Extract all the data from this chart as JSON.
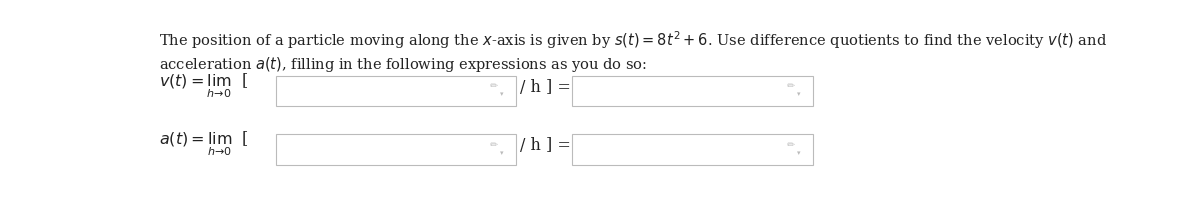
{
  "line1": "The position of a particle moving along the $x$-axis is given by $s(t) = 8t^2 + 6$. Use difference quotients to find the velocity $v(t)$ and",
  "line2": "acceleration $a(t)$, filling in the following expressions as you do so:",
  "row1_label": "$v(t) = \\lim_{h\\to 0}$  [",
  "row2_label": "$a(t) = \\lim_{h\\to 0}$  [",
  "separator": "/ h ] =",
  "box_fill": "#ffffff",
  "box_edge": "#bbbbbb",
  "text_color": "#222222",
  "bg_color": "#ffffff",
  "pencil_color": "#aaaaaa",
  "font_size_body": 10.5,
  "font_size_label": 11.5
}
